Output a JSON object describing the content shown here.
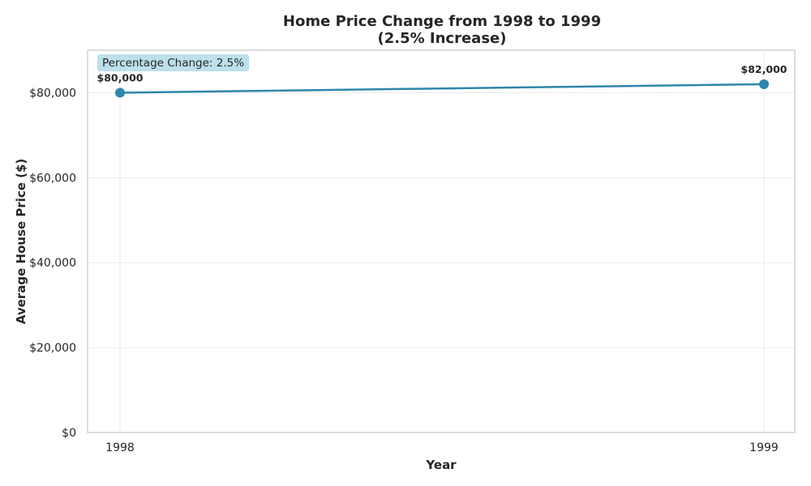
{
  "chart_data": {
    "type": "line",
    "title": "Home Price Change from 1998 to 1999",
    "subtitle": "(2.5% Increase)",
    "xlabel": "Year",
    "ylabel": "Average House Price ($)",
    "categories": [
      "1998",
      "1999"
    ],
    "series": [
      {
        "values": [
          80000,
          82000
        ],
        "color": "#2e86ab"
      }
    ],
    "data_labels": [
      "$80,000",
      "$82,000"
    ],
    "ylim": [
      0,
      90000
    ],
    "yticks": [
      0,
      20000,
      40000,
      60000,
      80000
    ],
    "ytick_labels": [
      "$0",
      "$20,000",
      "$40,000",
      "$60,000",
      "$80,000"
    ],
    "grid": true,
    "annotation": {
      "text": "Percentage Change: 2.5%",
      "placement": "top-left",
      "background": "#add8e6"
    }
  }
}
